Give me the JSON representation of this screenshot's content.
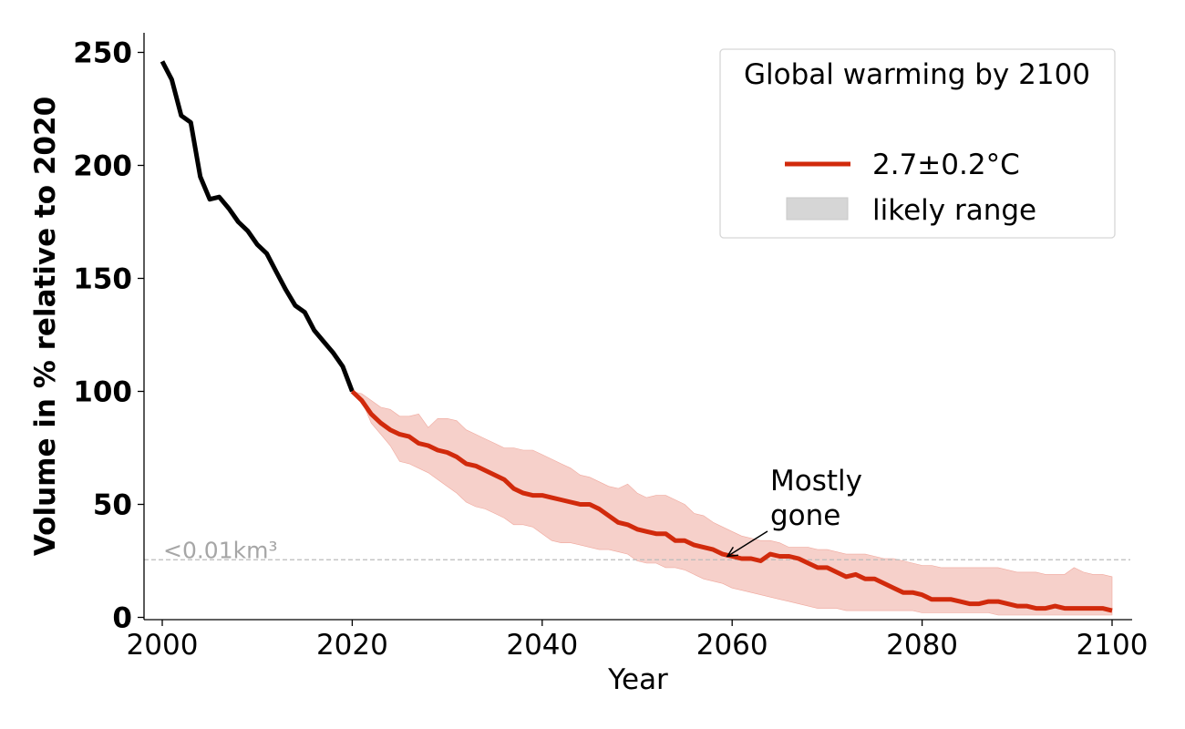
{
  "chart_data": {
    "type": "line",
    "title": "",
    "xlabel": "Year",
    "ylabel": "Volume in % relative to 2020",
    "xlim": [
      1998,
      2102
    ],
    "ylim": [
      -1,
      258
    ],
    "xticks": [
      2000,
      2020,
      2040,
      2060,
      2080,
      2100
    ],
    "yticks": [
      0,
      50,
      100,
      150,
      200,
      250
    ],
    "grid": false,
    "legend": {
      "placement": "top-right",
      "title": "Global warming by 2100",
      "entries": [
        {
          "label": "2.7±0.2°C",
          "kind": "line",
          "color": "#d12a0c"
        },
        {
          "label": "likely range",
          "kind": "patch",
          "color": "#d6d6d6"
        }
      ]
    },
    "threshold": {
      "value": 25.5,
      "label": "<0.01km³",
      "color": "#bbbbbb"
    },
    "annotation": {
      "text_lines": [
        "Mostly",
        "gone"
      ],
      "point": [
        2059.5,
        27
      ]
    },
    "series": [
      {
        "name": "observed",
        "color": "#000000",
        "x": [
          2000,
          2001,
          2002,
          2003,
          2004,
          2005,
          2006,
          2007,
          2008,
          2009,
          2010,
          2011,
          2012,
          2013,
          2014,
          2015,
          2016,
          2017,
          2018,
          2019,
          2020
        ],
        "y": [
          246,
          238,
          222,
          219,
          195,
          185,
          186,
          181,
          175,
          171,
          165,
          161,
          153,
          145,
          138,
          135,
          127,
          122,
          117,
          111,
          100
        ]
      },
      {
        "name": "2.7±0.2°C",
        "color": "#d12a0c",
        "x": [
          2020,
          2021,
          2022,
          2023,
          2024,
          2025,
          2026,
          2027,
          2028,
          2029,
          2030,
          2031,
          2032,
          2033,
          2034,
          2035,
          2036,
          2037,
          2038,
          2039,
          2040,
          2041,
          2042,
          2043,
          2044,
          2045,
          2046,
          2047,
          2048,
          2049,
          2050,
          2051,
          2052,
          2053,
          2054,
          2055,
          2056,
          2057,
          2058,
          2059,
          2060,
          2061,
          2062,
          2063,
          2064,
          2065,
          2066,
          2067,
          2068,
          2069,
          2070,
          2071,
          2072,
          2073,
          2074,
          2075,
          2076,
          2077,
          2078,
          2079,
          2080,
          2081,
          2082,
          2083,
          2084,
          2085,
          2086,
          2087,
          2088,
          2089,
          2090,
          2091,
          2092,
          2093,
          2094,
          2095,
          2096,
          2097,
          2098,
          2099,
          2100
        ],
        "y": [
          100,
          96,
          90,
          86,
          83,
          81,
          80,
          77,
          76,
          74,
          73,
          71,
          68,
          67,
          65,
          63,
          61,
          57,
          55,
          54,
          54,
          53,
          52,
          51,
          50,
          50,
          48,
          45,
          42,
          41,
          39,
          38,
          37,
          37,
          34,
          34,
          32,
          31,
          30,
          28,
          27,
          26,
          26,
          25,
          28,
          27,
          27,
          26,
          24,
          22,
          22,
          20,
          18,
          19,
          17,
          17,
          15,
          13,
          11,
          11,
          10,
          8,
          8,
          8,
          7,
          6,
          6,
          7,
          7,
          6,
          5,
          5,
          4,
          4,
          5,
          4,
          4,
          4,
          4,
          4,
          3
        ]
      }
    ],
    "range": {
      "name": "likely range",
      "color": "#f4c4bd",
      "x": [
        2020,
        2021,
        2022,
        2023,
        2024,
        2025,
        2026,
        2027,
        2028,
        2029,
        2030,
        2031,
        2032,
        2033,
        2034,
        2035,
        2036,
        2037,
        2038,
        2039,
        2040,
        2041,
        2042,
        2043,
        2044,
        2045,
        2046,
        2047,
        2048,
        2049,
        2050,
        2051,
        2052,
        2053,
        2054,
        2055,
        2056,
        2057,
        2058,
        2059,
        2060,
        2061,
        2062,
        2063,
        2064,
        2065,
        2066,
        2067,
        2068,
        2069,
        2070,
        2071,
        2072,
        2073,
        2074,
        2075,
        2076,
        2077,
        2078,
        2079,
        2080,
        2081,
        2082,
        2083,
        2084,
        2085,
        2086,
        2087,
        2088,
        2089,
        2090,
        2091,
        2092,
        2093,
        2094,
        2095,
        2096,
        2097,
        2098,
        2099,
        2100
      ],
      "upper": [
        100,
        99,
        96,
        93,
        92,
        89,
        89,
        90,
        84,
        88,
        88,
        87,
        83,
        81,
        79,
        77,
        75,
        75,
        74,
        74,
        72,
        70,
        68,
        66,
        63,
        62,
        60,
        58,
        57,
        59,
        55,
        53,
        54,
        54,
        52,
        50,
        46,
        45,
        42,
        40,
        38,
        36,
        35,
        34,
        34,
        33,
        31,
        31,
        31,
        30,
        30,
        29,
        28,
        28,
        28,
        27,
        26,
        26,
        25,
        24,
        23,
        23,
        22,
        22,
        22,
        22,
        22,
        22,
        22,
        21,
        20,
        20,
        20,
        19,
        19,
        19,
        22,
        20,
        19,
        19,
        18
      ],
      "lower": [
        100,
        96,
        86,
        81,
        76,
        69,
        68,
        66,
        64,
        61,
        58,
        55,
        51,
        49,
        48,
        46,
        44,
        41,
        41,
        40,
        37,
        34,
        33,
        33,
        32,
        31,
        30,
        30,
        29,
        28,
        25,
        24,
        24,
        22,
        22,
        21,
        19,
        17,
        16,
        15,
        13,
        12,
        11,
        10,
        9,
        8,
        7,
        6,
        5,
        4,
        4,
        4,
        3,
        3,
        3,
        3,
        3,
        3,
        3,
        3,
        2,
        2,
        2,
        2,
        2,
        2,
        2,
        2,
        1,
        1,
        1,
        1,
        1,
        1,
        1,
        1,
        1,
        1,
        1,
        1,
        1
      ]
    }
  }
}
